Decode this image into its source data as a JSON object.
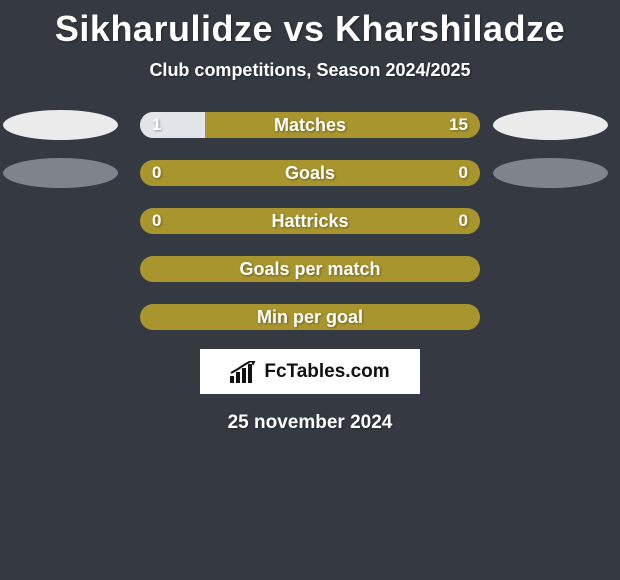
{
  "title": "Sikharulidze vs Kharshiladze",
  "subtitle": "Club competitions, Season 2024/2025",
  "colors": {
    "bg": "#353a42",
    "bar_base": "#a8952e",
    "bar_fill": "#e1e4e8",
    "ellipse_left": "#ebebeb",
    "ellipse_right": "#ebebeb",
    "ellipse_grey": "#7f848c",
    "logo_bg": "#ffffff"
  },
  "rows": [
    {
      "label": "Matches",
      "left": "1",
      "right": "15",
      "fill_pct": 19,
      "show_ellipses": true,
      "grey_ellipse": false
    },
    {
      "label": "Goals",
      "left": "0",
      "right": "0",
      "fill_pct": 0,
      "show_ellipses": true,
      "grey_ellipse": true
    },
    {
      "label": "Hattricks",
      "left": "0",
      "right": "0",
      "fill_pct": 0,
      "show_ellipses": false
    },
    {
      "label": "Goals per match",
      "left": "",
      "right": "",
      "fill_pct": 0,
      "show_ellipses": false
    },
    {
      "label": "Min per goal",
      "left": "",
      "right": "",
      "fill_pct": 0,
      "show_ellipses": false
    }
  ],
  "logo_text": "FcTables.com",
  "date": "25 november 2024"
}
